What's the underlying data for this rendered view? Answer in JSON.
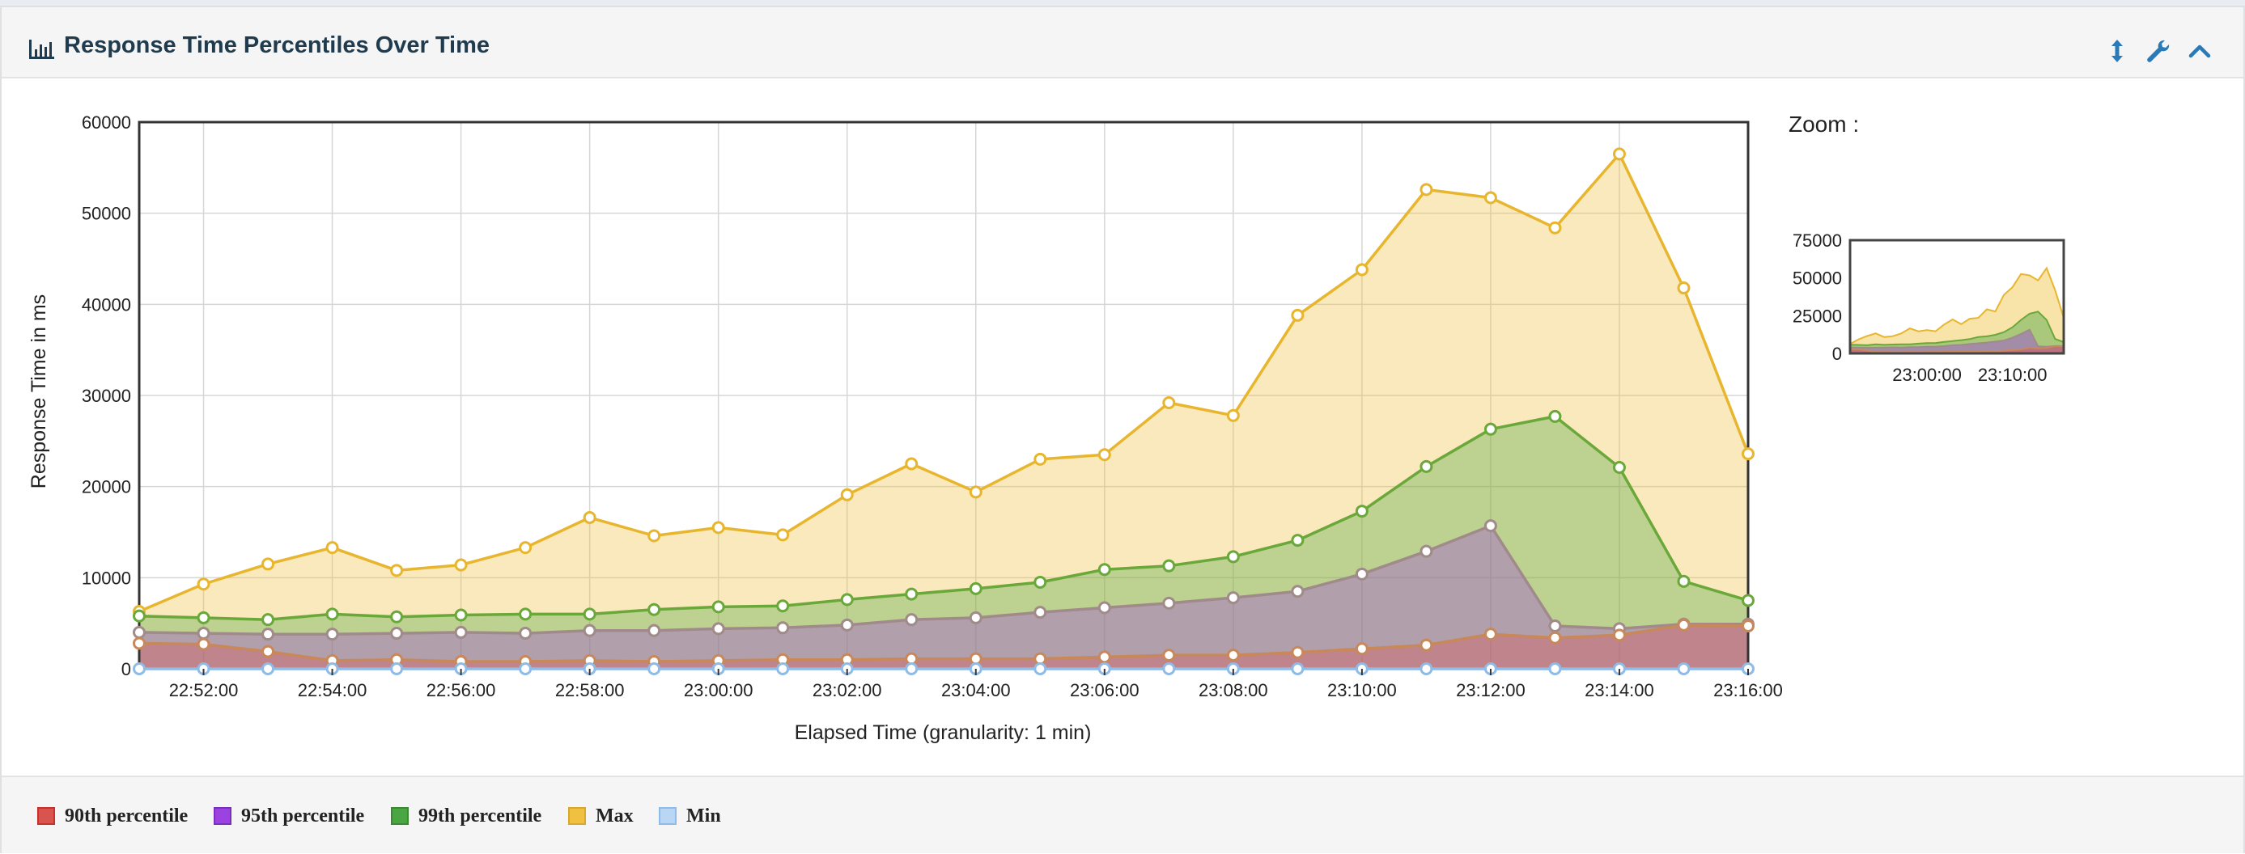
{
  "panel": {
    "title": "Response Time Percentiles Over Time",
    "buttons": {
      "resize": "resize-vertical",
      "settings": "wrench",
      "collapse": "chevron-up"
    }
  },
  "zoom": {
    "label": "Zoom :",
    "y_ticks": [
      "75000",
      "50000",
      "25000",
      "0"
    ],
    "x_ticks": [
      "23:00:00",
      "23:10:00"
    ]
  },
  "legend": [
    {
      "name": "90th percentile",
      "color": "#d9534f"
    },
    {
      "name": "95th percentile",
      "color": "#9b42e0"
    },
    {
      "name": "99th percentile",
      "color": "#4aa642"
    },
    {
      "name": "Max",
      "color": "#f0c040"
    },
    {
      "name": "Min",
      "color": "#b9d6f5"
    }
  ],
  "chart_data": {
    "type": "area",
    "xlabel": "Elapsed Time (granularity: 1 min)",
    "ylabel": "Response Time in ms",
    "ylim": [
      0,
      60000
    ],
    "yticks": [
      0,
      10000,
      20000,
      30000,
      40000,
      50000,
      60000
    ],
    "x": [
      "22:51:00",
      "22:52:00",
      "22:53:00",
      "22:54:00",
      "22:55:00",
      "22:56:00",
      "22:57:00",
      "22:58:00",
      "22:59:00",
      "23:00:00",
      "23:01:00",
      "23:02:00",
      "23:03:00",
      "23:04:00",
      "23:05:00",
      "23:06:00",
      "23:07:00",
      "23:08:00",
      "23:09:00",
      "23:10:00",
      "23:11:00",
      "23:12:00",
      "23:13:00",
      "23:14:00",
      "23:15:00",
      "23:16:00"
    ],
    "xtick_labels": [
      "22:52:00",
      "22:54:00",
      "22:56:00",
      "22:58:00",
      "23:00:00",
      "23:02:00",
      "23:04:00",
      "23:06:00",
      "23:08:00",
      "23:10:00",
      "23:12:00",
      "23:14:00",
      "23:16:00"
    ],
    "grid": true,
    "series": [
      {
        "name": "Max",
        "color": "#f0c040",
        "values": [
          6300,
          9300,
          11500,
          13300,
          10800,
          11400,
          13300,
          16600,
          14600,
          15500,
          14700,
          19100,
          22500,
          19400,
          23000,
          23500,
          29200,
          27800,
          38800,
          43800,
          52600,
          51700,
          48400,
          56500,
          41800,
          23600
        ]
      },
      {
        "name": "99th percentile",
        "color": "#4aa642",
        "values": [
          5800,
          5600,
          5400,
          6000,
          5700,
          5900,
          6000,
          6000,
          6500,
          6800,
          6900,
          7600,
          8200,
          8800,
          9500,
          10900,
          11300,
          12300,
          14100,
          17300,
          22200,
          26300,
          27700,
          22100,
          9600,
          7500
        ]
      },
      {
        "name": "95th percentile",
        "color": "#9b42e0",
        "values": [
          4000,
          3900,
          3800,
          3800,
          3900,
          4000,
          3900,
          4200,
          4200,
          4400,
          4500,
          4800,
          5400,
          5600,
          6200,
          6700,
          7200,
          7800,
          8500,
          10400,
          12900,
          15700,
          4700,
          4400,
          4900,
          4900
        ]
      },
      {
        "name": "90th percentile",
        "color": "#d9534f",
        "values": [
          2800,
          2700,
          1900,
          900,
          1000,
          800,
          800,
          900,
          800,
          900,
          1000,
          1000,
          1100,
          1100,
          1100,
          1300,
          1500,
          1500,
          1800,
          2200,
          2600,
          3800,
          3400,
          3700,
          4800,
          4700
        ]
      },
      {
        "name": "Min",
        "color": "#b9d6f5",
        "values": [
          0,
          0,
          0,
          0,
          0,
          0,
          0,
          0,
          0,
          0,
          0,
          0,
          0,
          0,
          0,
          0,
          0,
          0,
          0,
          0,
          0,
          0,
          0,
          0,
          0,
          0
        ]
      }
    ]
  }
}
